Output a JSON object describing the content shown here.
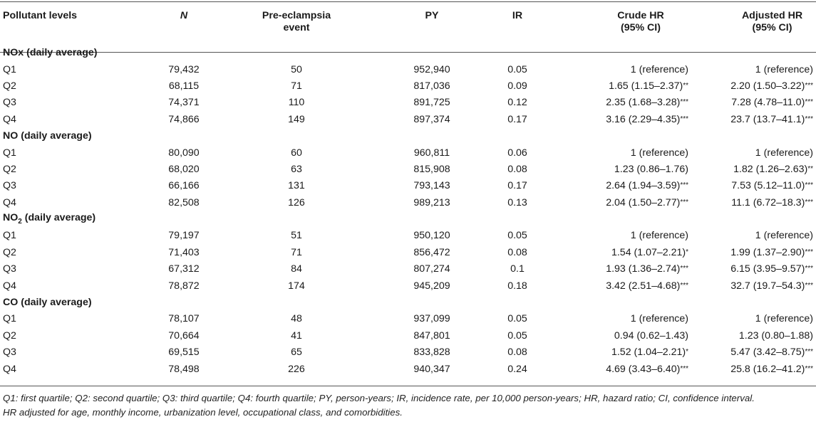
{
  "headers": {
    "pollutant": "Pollutant levels",
    "n": "N",
    "event_line1": "Pre-eclampsia",
    "event_line2": "event",
    "py": "PY",
    "ir": "IR",
    "crude_line1": "Crude HR",
    "crude_line2": "(95% CI)",
    "adj_line1": "Adjusted HR",
    "adj_line2": "(95% CI)"
  },
  "sections": [
    {
      "title_pre": "NOx",
      "title_sub": "",
      "title_post": " (daily average)",
      "rows": [
        {
          "q": "Q1",
          "n": "79,432",
          "event": "50",
          "py": "952,940",
          "ir": "0.05",
          "crude": "1 (reference)",
          "crude_sig": "",
          "adj": "1 (reference)",
          "adj_sig": ""
        },
        {
          "q": "Q2",
          "n": "68,115",
          "event": "71",
          "py": "817,036",
          "ir": "0.09",
          "crude": "1.65 (1.15–2.37)",
          "crude_sig": "**",
          "adj": "2.20 (1.50–3.22)",
          "adj_sig": "***"
        },
        {
          "q": "Q3",
          "n": "74,371",
          "event": "110",
          "py": "891,725",
          "ir": "0.12",
          "crude": "2.35 (1.68–3.28)",
          "crude_sig": "***",
          "adj": "7.28 (4.78–11.0)",
          "adj_sig": "***"
        },
        {
          "q": "Q4",
          "n": "74,866",
          "event": "149",
          "py": "897,374",
          "ir": "0.17",
          "crude": "3.16 (2.29–4.35)",
          "crude_sig": "***",
          "adj": "23.7 (13.7–41.1)",
          "adj_sig": "***"
        }
      ]
    },
    {
      "title_pre": "NO",
      "title_sub": "",
      "title_post": " (daily average)",
      "rows": [
        {
          "q": "Q1",
          "n": "80,090",
          "event": "60",
          "py": "960,811",
          "ir": "0.06",
          "crude": "1 (reference)",
          "crude_sig": "",
          "adj": "1 (reference)",
          "adj_sig": ""
        },
        {
          "q": "Q2",
          "n": "68,020",
          "event": "63",
          "py": "815,908",
          "ir": "0.08",
          "crude": "1.23 (0.86–1.76)",
          "crude_sig": "",
          "adj": "1.82 (1.26–2.63)",
          "adj_sig": "**"
        },
        {
          "q": "Q3",
          "n": "66,166",
          "event": "131",
          "py": "793,143",
          "ir": "0.17",
          "crude": "2.64 (1.94–3.59)",
          "crude_sig": "***",
          "adj": "7.53 (5.12–11.0)",
          "adj_sig": "***"
        },
        {
          "q": "Q4",
          "n": "82,508",
          "event": "126",
          "py": "989,213",
          "ir": "0.13",
          "crude": "2.04 (1.50–2.77)",
          "crude_sig": "***",
          "adj": "11.1 (6.72–18.3)",
          "adj_sig": "***"
        }
      ]
    },
    {
      "title_pre": "NO",
      "title_sub": "2",
      "title_post": " (daily average)",
      "rows": [
        {
          "q": "Q1",
          "n": "79,197",
          "event": "51",
          "py": "950,120",
          "ir": "0.05",
          "crude": "1 (reference)",
          "crude_sig": "",
          "adj": "1 (reference)",
          "adj_sig": ""
        },
        {
          "q": "Q2",
          "n": "71,403",
          "event": "71",
          "py": "856,472",
          "ir": "0.08",
          "crude": "1.54 (1.07–2.21)",
          "crude_sig": "*",
          "adj": "1.99 (1.37–2.90)",
          "adj_sig": "***"
        },
        {
          "q": "Q3",
          "n": "67,312",
          "event": "84",
          "py": "807,274",
          "ir": "0.1",
          "crude": "1.93 (1.36–2.74)",
          "crude_sig": "***",
          "adj": "6.15 (3.95–9.57)",
          "adj_sig": "***"
        },
        {
          "q": "Q4",
          "n": "78,872",
          "event": "174",
          "py": "945,209",
          "ir": "0.18",
          "crude": "3.42 (2.51–4.68)",
          "crude_sig": "***",
          "adj": "32.7 (19.7–54.3)",
          "adj_sig": "***"
        }
      ]
    },
    {
      "title_pre": "CO",
      "title_sub": "",
      "title_post": " (daily average)",
      "rows": [
        {
          "q": "Q1",
          "n": "78,107",
          "event": "48",
          "py": "937,099",
          "ir": "0.05",
          "crude": "1 (reference)",
          "crude_sig": "",
          "adj": "1 (reference)",
          "adj_sig": ""
        },
        {
          "q": "Q2",
          "n": "70,664",
          "event": "41",
          "py": "847,801",
          "ir": "0.05",
          "crude": "0.94 (0.62–1.43)",
          "crude_sig": "",
          "adj": "1.23 (0.80–1.88)",
          "adj_sig": ""
        },
        {
          "q": "Q3",
          "n": "69,515",
          "event": "65",
          "py": "833,828",
          "ir": "0.08",
          "crude": "1.52 (1.04–2.21)",
          "crude_sig": "*",
          "adj": "5.47 (3.42–8.75)",
          "adj_sig": "***"
        },
        {
          "q": "Q4",
          "n": "78,498",
          "event": "226",
          "py": "940,347",
          "ir": "0.24",
          "crude": "4.69 (3.43–6.40)",
          "crude_sig": "***",
          "adj": "25.8 (16.2–41.2)",
          "adj_sig": "***"
        }
      ]
    }
  ],
  "footnote": {
    "line1": "Q1: first quartile; Q2: second quartile; Q3: third quartile; Q4: fourth quartile; PY, person-years; IR, incidence rate, per 10,000 person-years; HR, hazard ratio; CI, confidence interval.",
    "line2": "HR adjusted for age, monthly income, urbanization level, occupational class, and comorbidities."
  }
}
